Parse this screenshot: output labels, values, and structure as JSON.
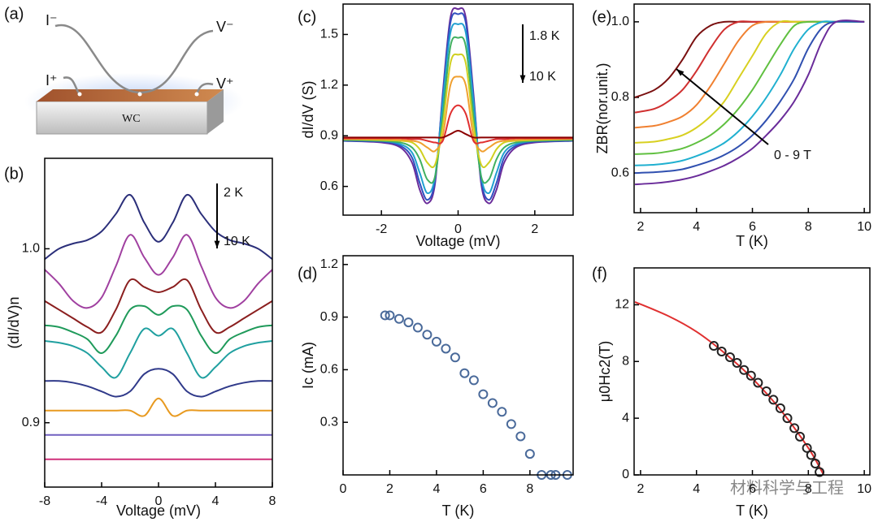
{
  "diagram": {
    "panel_label": "(a)",
    "labels": [
      "I⁻",
      "V⁻",
      "I⁺",
      "V⁺",
      "WC"
    ]
  },
  "watermark": "材料科学与工程",
  "chart_data": [
    {
      "type": "line",
      "panel_label": "(b)",
      "xlabel": "Voltage (mV)",
      "ylabel": "(dI/dV)n",
      "annotations": [
        "2 K",
        "10 K"
      ],
      "x": [
        -8,
        -7,
        -6,
        -5,
        -4,
        -3,
        -2,
        -1,
        0,
        1,
        2,
        3,
        4,
        5,
        6,
        7,
        8
      ],
      "xlim": [
        -8,
        8
      ],
      "xticks": [
        -8,
        -4,
        0,
        4,
        8
      ],
      "ylim": [
        0.863,
        1.052
      ],
      "yticks": [
        0.9,
        {
          "value": 1,
          "label": "1.0"
        }
      ],
      "series": [
        {
          "color": "#2b2f7a",
          "values": [
            0.994,
            1.0,
            1.003,
            1.005,
            1.01,
            1.02,
            1.031,
            1.015,
            1.004,
            1.015,
            1.031,
            1.02,
            1.01,
            1.005,
            1.003,
            1.0,
            0.994
          ]
        },
        {
          "color": "#a040a0",
          "values": [
            0.988,
            0.98,
            0.97,
            0.966,
            0.972,
            0.99,
            1.008,
            0.995,
            0.985,
            0.995,
            1.008,
            0.99,
            0.972,
            0.966,
            0.97,
            0.98,
            0.988
          ]
        },
        {
          "color": "#8b1f1f",
          "values": [
            0.97,
            0.965,
            0.96,
            0.955,
            0.952,
            0.965,
            0.982,
            0.978,
            0.975,
            0.978,
            0.982,
            0.965,
            0.952,
            0.955,
            0.96,
            0.965,
            0.97
          ]
        },
        {
          "color": "#1f9a5a",
          "values": [
            0.956,
            0.955,
            0.952,
            0.948,
            0.94,
            0.95,
            0.965,
            0.967,
            0.962,
            0.967,
            0.965,
            0.95,
            0.94,
            0.948,
            0.952,
            0.955,
            0.956
          ]
        },
        {
          "color": "#20a0a0",
          "values": [
            0.947,
            0.946,
            0.944,
            0.94,
            0.932,
            0.926,
            0.94,
            0.954,
            0.95,
            0.954,
            0.94,
            0.926,
            0.932,
            0.94,
            0.944,
            0.946,
            0.947
          ]
        },
        {
          "color": "#303a8a",
          "values": [
            0.924,
            0.924,
            0.923,
            0.921,
            0.918,
            0.915,
            0.918,
            0.928,
            0.931,
            0.928,
            0.918,
            0.915,
            0.918,
            0.921,
            0.923,
            0.924,
            0.924
          ]
        },
        {
          "color": "#e89a20",
          "values": [
            0.907,
            0.907,
            0.907,
            0.907,
            0.907,
            0.907,
            0.907,
            0.904,
            0.914,
            0.904,
            0.907,
            0.907,
            0.907,
            0.907,
            0.907,
            0.907,
            0.907
          ]
        },
        {
          "color": "#7060c0",
          "values": [
            0.893,
            0.893,
            0.893,
            0.893,
            0.893,
            0.893,
            0.893,
            0.893,
            0.893,
            0.893,
            0.893,
            0.893,
            0.893,
            0.893,
            0.893,
            0.893,
            0.893
          ]
        },
        {
          "color": "#d0307a",
          "values": [
            0.879,
            0.879,
            0.879,
            0.879,
            0.879,
            0.879,
            0.879,
            0.879,
            0.879,
            0.879,
            0.879,
            0.879,
            0.879,
            0.879,
            0.879,
            0.879,
            0.879
          ]
        }
      ]
    },
    {
      "type": "line",
      "panel_label": "(c)",
      "xlabel": "Voltage (mV)",
      "ylabel": "dI/dV (S)",
      "annotations": [
        "1.8 K",
        "10 K"
      ],
      "x": [
        -3,
        -2,
        -1.5,
        -1.2,
        -1,
        -0.8,
        -0.6,
        -0.4,
        -0.2,
        0,
        0.2,
        0.4,
        0.6,
        0.8,
        1,
        1.2,
        1.5,
        2,
        3
      ],
      "xlim": [
        -3,
        3
      ],
      "xticks": [
        -2,
        0,
        2
      ],
      "ylim": [
        0.43,
        1.68
      ],
      "yticks": [
        0.6,
        0.9,
        1.2,
        1.5
      ],
      "series": [
        {
          "color": "#6a2c9a",
          "values": [
            0.87,
            0.86,
            0.83,
            0.74,
            0.58,
            0.5,
            0.62,
            1.15,
            1.6,
            1.65,
            1.6,
            1.15,
            0.62,
            0.5,
            0.58,
            0.74,
            0.83,
            0.86,
            0.87
          ]
        },
        {
          "color": "#3050c0",
          "values": [
            0.87,
            0.865,
            0.84,
            0.77,
            0.62,
            0.52,
            0.64,
            1.13,
            1.57,
            1.62,
            1.57,
            1.13,
            0.64,
            0.52,
            0.62,
            0.77,
            0.84,
            0.865,
            0.87
          ]
        },
        {
          "color": "#20a0d0",
          "values": [
            0.875,
            0.87,
            0.85,
            0.8,
            0.68,
            0.56,
            0.66,
            1.1,
            1.51,
            1.56,
            1.51,
            1.1,
            0.66,
            0.56,
            0.68,
            0.8,
            0.85,
            0.87,
            0.875
          ]
        },
        {
          "color": "#40b060",
          "values": [
            0.875,
            0.87,
            0.86,
            0.83,
            0.76,
            0.64,
            0.66,
            1.02,
            1.43,
            1.48,
            1.43,
            1.02,
            0.66,
            0.64,
            0.76,
            0.83,
            0.86,
            0.87,
            0.875
          ]
        },
        {
          "color": "#d0d020",
          "values": [
            0.88,
            0.875,
            0.87,
            0.86,
            0.82,
            0.74,
            0.73,
            0.96,
            1.33,
            1.38,
            1.33,
            0.96,
            0.73,
            0.74,
            0.82,
            0.86,
            0.87,
            0.875,
            0.88
          ]
        },
        {
          "color": "#f0a030",
          "values": [
            0.88,
            0.88,
            0.875,
            0.87,
            0.86,
            0.83,
            0.81,
            0.9,
            1.2,
            1.25,
            1.2,
            0.9,
            0.81,
            0.83,
            0.86,
            0.87,
            0.875,
            0.88,
            0.88
          ]
        },
        {
          "color": "#e03030",
          "values": [
            0.885,
            0.885,
            0.885,
            0.88,
            0.88,
            0.87,
            0.86,
            0.87,
            1.03,
            1.08,
            1.03,
            0.87,
            0.86,
            0.87,
            0.88,
            0.88,
            0.885,
            0.885,
            0.885
          ]
        },
        {
          "color": "#8b0000",
          "values": [
            0.89,
            0.89,
            0.89,
            0.89,
            0.89,
            0.89,
            0.89,
            0.89,
            0.91,
            0.93,
            0.91,
            0.89,
            0.89,
            0.89,
            0.89,
            0.89,
            0.89,
            0.89,
            0.89
          ]
        }
      ]
    },
    {
      "type": "scatter",
      "panel_label": "(d)",
      "xlabel": "T (K)",
      "ylabel": "Ic (mA)",
      "x": [
        1.8,
        2.0,
        2.4,
        2.8,
        3.2,
        3.6,
        4.0,
        4.4,
        4.8,
        5.2,
        5.6,
        6.0,
        6.4,
        6.8,
        7.2,
        7.6,
        8.0,
        8.5,
        8.9,
        9.1,
        9.6
      ],
      "xlim": [
        0,
        9.85
      ],
      "xticks": [
        0,
        2,
        4,
        6,
        8
      ],
      "ylim": [
        0,
        1.25
      ],
      "yticks": [
        0.3,
        0.6,
        0.9,
        1.2
      ],
      "series": [
        {
          "color": "#4a6a9a",
          "values": [
            0.91,
            0.91,
            0.89,
            0.87,
            0.84,
            0.8,
            0.76,
            0.72,
            0.67,
            0.58,
            0.54,
            0.46,
            0.41,
            0.36,
            0.29,
            0.22,
            0.12,
            0,
            0,
            0,
            0
          ]
        }
      ]
    },
    {
      "type": "line",
      "panel_label": "(e)",
      "xlabel": "T (K)",
      "ylabel": "ZBR(nor.unit.)",
      "annotations": [
        "0 - 9 T"
      ],
      "x": [
        1.8,
        2.5,
        3,
        3.5,
        4,
        4.5,
        5,
        5.5,
        6,
        6.5,
        7,
        7.5,
        8,
        8.5,
        9,
        10
      ],
      "xlim": [
        1.77,
        10.2
      ],
      "xticks": [
        2,
        4,
        6,
        8,
        10
      ],
      "ylim": [
        0.495,
        1.047
      ],
      "yticks": [
        0.6,
        0.8,
        {
          "value": 1,
          "label": "1.0"
        }
      ],
      "series": [
        {
          "color": "#7a1010",
          "values": [
            0.8,
            0.82,
            0.85,
            0.9,
            0.96,
            0.99,
            1,
            1,
            1,
            1,
            1,
            1,
            1,
            1,
            1,
            1
          ]
        },
        {
          "color": "#d03030",
          "values": [
            0.76,
            0.77,
            0.79,
            0.82,
            0.87,
            0.93,
            0.98,
            1,
            1,
            1,
            1,
            1,
            1,
            1,
            1,
            1
          ]
        },
        {
          "color": "#f08030",
          "values": [
            0.72,
            0.725,
            0.735,
            0.75,
            0.78,
            0.83,
            0.89,
            0.95,
            0.99,
            1,
            1,
            1,
            1,
            1,
            1,
            1
          ]
        },
        {
          "color": "#d8d020",
          "values": [
            0.68,
            0.683,
            0.69,
            0.7,
            0.72,
            0.75,
            0.79,
            0.85,
            0.91,
            0.97,
            1,
            1,
            1,
            1,
            1,
            1
          ]
        },
        {
          "color": "#60c040",
          "values": [
            0.65,
            0.652,
            0.657,
            0.665,
            0.68,
            0.7,
            0.73,
            0.77,
            0.82,
            0.88,
            0.94,
            0.99,
            1,
            1,
            1,
            1
          ]
        },
        {
          "color": "#20b0d0",
          "values": [
            0.62,
            0.622,
            0.626,
            0.633,
            0.645,
            0.66,
            0.68,
            0.71,
            0.75,
            0.8,
            0.86,
            0.93,
            0.98,
            1,
            1,
            1
          ]
        },
        {
          "color": "#3050b0",
          "values": [
            0.6,
            0.602,
            0.605,
            0.61,
            0.62,
            0.632,
            0.648,
            0.67,
            0.7,
            0.74,
            0.79,
            0.85,
            0.93,
            0.985,
            1,
            1
          ]
        },
        {
          "color": "#6a2c9a",
          "values": [
            0.57,
            0.573,
            0.577,
            0.583,
            0.592,
            0.605,
            0.62,
            0.64,
            0.665,
            0.7,
            0.74,
            0.79,
            0.86,
            0.95,
            1,
            1
          ]
        }
      ]
    },
    {
      "type": "scatter",
      "panel_label": "(f)",
      "xlabel": "T (K)",
      "ylabel": "μ0Hc2(T)",
      "xlim": [
        1.77,
        10.2
      ],
      "xticks": [
        2,
        4,
        6,
        8,
        10
      ],
      "ylim": [
        0,
        14.6
      ],
      "yticks": [
        0,
        4,
        8,
        12
      ],
      "series": [
        {
          "type": "line",
          "color": "#e03030",
          "x": [
            1.8,
            3,
            4,
            5,
            6,
            7,
            8,
            8.55
          ],
          "values": [
            12.2,
            11.2,
            10.1,
            8.6,
            6.8,
            4.6,
            1.9,
            0
          ]
        },
        {
          "type": "scatter",
          "color": "#222222",
          "x": [
            4.62,
            4.9,
            5.2,
            5.45,
            5.7,
            5.95,
            6.2,
            6.5,
            6.75,
            7.0,
            7.25,
            7.5,
            7.7,
            7.95,
            8.1,
            8.25,
            8.4
          ],
          "values": [
            9.1,
            8.7,
            8.3,
            7.9,
            7.4,
            7.0,
            6.5,
            5.9,
            5.3,
            4.7,
            4.0,
            3.3,
            2.7,
            1.9,
            1.4,
            0.8,
            0.2
          ]
        }
      ]
    }
  ]
}
